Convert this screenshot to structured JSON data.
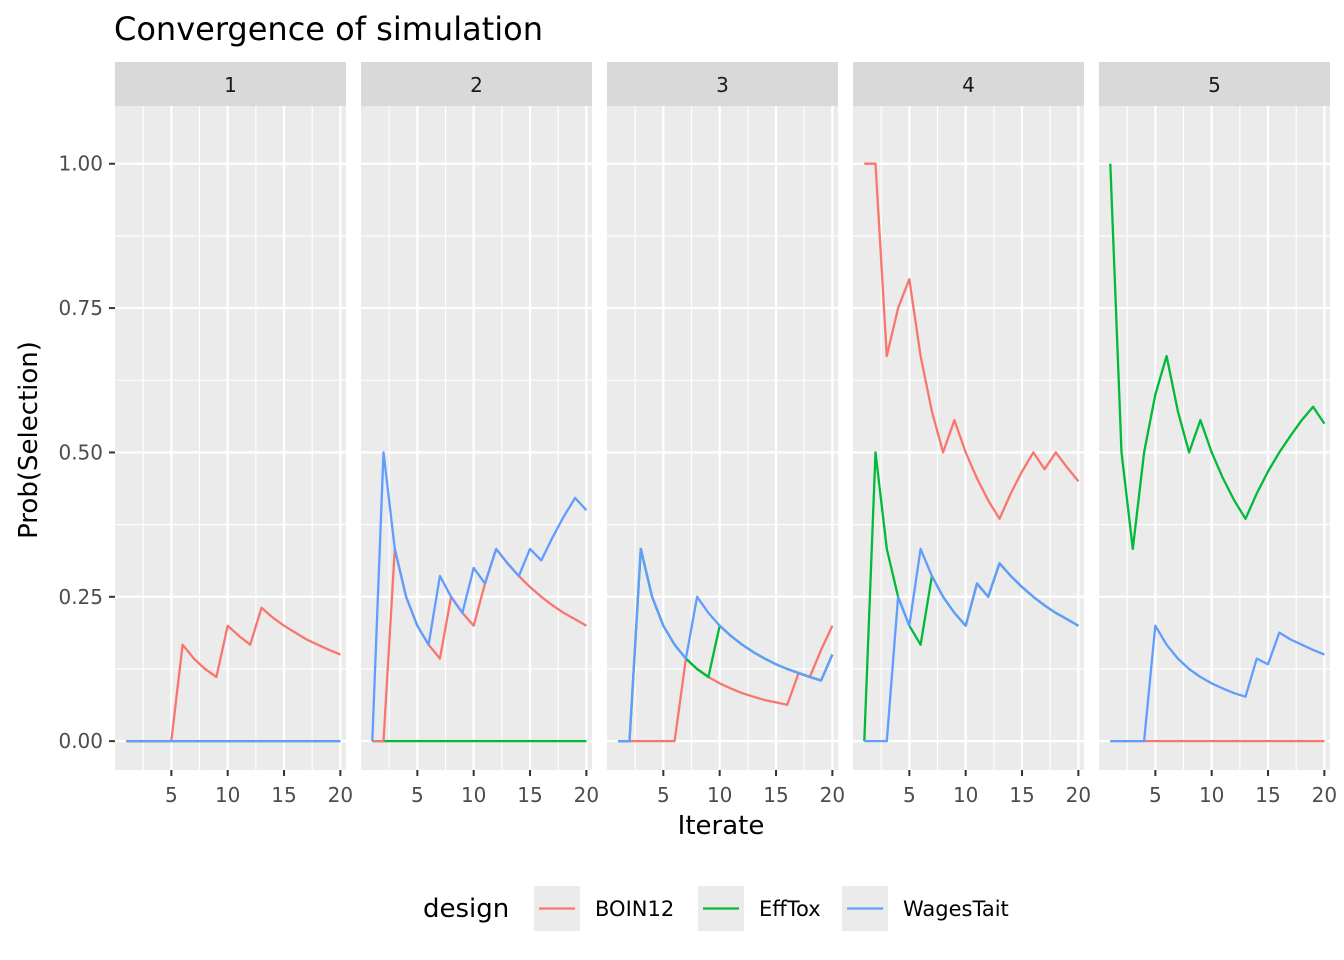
{
  "chart_data": {
    "type": "line",
    "title": "Convergence of simulation",
    "xlabel": "Iterate",
    "ylabel": "Prob(Selection)",
    "xlim": [
      0,
      20.5
    ],
    "ylim": [
      -0.05,
      1.1
    ],
    "xticks": [
      5,
      10,
      15,
      20
    ],
    "xtick_labels": [
      "5",
      "10",
      "15",
      "20"
    ],
    "yticks": [
      0,
      0.25,
      0.5,
      0.75,
      1.0
    ],
    "ytick_labels": [
      "0.00",
      "0.25",
      "0.50",
      "0.75",
      "1.00"
    ],
    "grid": true,
    "legend": {
      "title": "design",
      "position": "bottom",
      "entries": [
        {
          "name": "BOIN12",
          "color": "#F8766D"
        },
        {
          "name": "EffTox",
          "color": "#00BA38"
        },
        {
          "name": "WagesTait",
          "color": "#619CFF"
        }
      ]
    },
    "panels": [
      {
        "label": "1",
        "series": [
          {
            "name": "EffTox",
            "color": "#00BA38",
            "x": [
              1,
              2,
              3,
              4,
              5,
              6,
              7,
              8,
              9,
              10,
              11,
              12,
              13,
              14,
              15,
              16,
              17,
              18,
              19,
              20
            ],
            "values": [
              0,
              0,
              0,
              0,
              0,
              0,
              0,
              0,
              0,
              0,
              0,
              0,
              0,
              0,
              0,
              0,
              0,
              0,
              0,
              0
            ]
          },
          {
            "name": "BOIN12",
            "color": "#F8766D",
            "x": [
              1,
              2,
              3,
              4,
              5,
              6,
              7,
              8,
              9,
              10,
              11,
              12,
              13,
              14,
              15,
              16,
              17,
              18,
              19,
              20
            ],
            "values": [
              0,
              0,
              0,
              0,
              0,
              0.167,
              0.143,
              0.125,
              0.111,
              0.2,
              0.182,
              0.167,
              0.231,
              0.214,
              0.2,
              0.188,
              0.176,
              0.167,
              0.158,
              0.15
            ]
          },
          {
            "name": "WagesTait",
            "color": "#619CFF",
            "x": [
              1,
              2,
              3,
              4,
              5,
              6,
              7,
              8,
              9,
              10,
              11,
              12,
              13,
              14,
              15,
              16,
              17,
              18,
              19,
              20
            ],
            "values": [
              0,
              0,
              0,
              0,
              0,
              0,
              0,
              0,
              0,
              0,
              0,
              0,
              0,
              0,
              0,
              0,
              0,
              0,
              0,
              0
            ]
          }
        ]
      },
      {
        "label": "2",
        "series": [
          {
            "name": "EffTox",
            "color": "#00BA38",
            "x": [
              1,
              2,
              3,
              4,
              5,
              6,
              7,
              8,
              9,
              10,
              11,
              12,
              13,
              14,
              15,
              16,
              17,
              18,
              19,
              20
            ],
            "values": [
              0,
              0,
              0,
              0,
              0,
              0,
              0,
              0,
              0,
              0,
              0,
              0,
              0,
              0,
              0,
              0,
              0,
              0,
              0,
              0
            ]
          },
          {
            "name": "BOIN12",
            "color": "#F8766D",
            "x": [
              1,
              2,
              3,
              4,
              5,
              6,
              7,
              8,
              9,
              10,
              11,
              12,
              13,
              14,
              15,
              16,
              17,
              18,
              19,
              20
            ],
            "values": [
              0,
              0,
              0.333,
              0.25,
              0.2,
              0.167,
              0.143,
              0.25,
              0.222,
              0.2,
              0.273,
              0.333,
              0.308,
              0.286,
              0.267,
              0.25,
              0.235,
              0.222,
              0.211,
              0.2
            ]
          },
          {
            "name": "WagesTait",
            "color": "#619CFF",
            "x": [
              1,
              2,
              3,
              4,
              5,
              6,
              7,
              8,
              9,
              10,
              11,
              12,
              13,
              14,
              15,
              16,
              17,
              18,
              19,
              20
            ],
            "values": [
              0,
              0.5,
              0.333,
              0.25,
              0.2,
              0.167,
              0.286,
              0.25,
              0.222,
              0.3,
              0.273,
              0.333,
              0.308,
              0.286,
              0.333,
              0.313,
              0.353,
              0.389,
              0.421,
              0.4
            ]
          }
        ]
      },
      {
        "label": "3",
        "series": [
          {
            "name": "BOIN12",
            "color": "#F8766D",
            "x": [
              1,
              2,
              3,
              4,
              5,
              6,
              7,
              8,
              9,
              10,
              11,
              12,
              13,
              14,
              15,
              16,
              17,
              18,
              19,
              20
            ],
            "values": [
              0,
              0,
              0,
              0,
              0,
              0,
              0.143,
              0.125,
              0.111,
              0.1,
              0.091,
              0.083,
              0.077,
              0.071,
              0.067,
              0.063,
              0.118,
              0.111,
              0.158,
              0.2
            ]
          },
          {
            "name": "EffTox",
            "color": "#00BA38",
            "x": [
              1,
              2,
              3,
              4,
              5,
              6,
              7,
              8,
              9,
              10,
              11,
              12,
              13,
              14,
              15,
              16,
              17,
              18,
              19,
              20
            ],
            "values": [
              0,
              0,
              0.333,
              0.25,
              0.2,
              0.167,
              0.143,
              0.125,
              0.111,
              0.2,
              0.182,
              0.167,
              0.154,
              0.143,
              0.133,
              0.125,
              0.118,
              0.111,
              0.105,
              0.15
            ]
          },
          {
            "name": "WagesTait",
            "color": "#619CFF",
            "x": [
              1,
              2,
              3,
              4,
              5,
              6,
              7,
              8,
              9,
              10,
              11,
              12,
              13,
              14,
              15,
              16,
              17,
              18,
              19,
              20
            ],
            "values": [
              0,
              0,
              0.333,
              0.25,
              0.2,
              0.167,
              0.143,
              0.25,
              0.222,
              0.2,
              0.182,
              0.167,
              0.154,
              0.143,
              0.133,
              0.125,
              0.118,
              0.111,
              0.105,
              0.15
            ]
          }
        ]
      },
      {
        "label": "4",
        "series": [
          {
            "name": "BOIN12",
            "color": "#F8766D",
            "x": [
              1,
              2,
              3,
              4,
              5,
              6,
              7,
              8,
              9,
              10,
              11,
              12,
              13,
              14,
              15,
              16,
              17,
              18,
              19,
              20
            ],
            "values": [
              1,
              1,
              0.667,
              0.75,
              0.8,
              0.667,
              0.571,
              0.5,
              0.556,
              0.5,
              0.455,
              0.417,
              0.385,
              0.429,
              0.467,
              0.5,
              0.471,
              0.5,
              0.474,
              0.45
            ]
          },
          {
            "name": "EffTox",
            "color": "#00BA38",
            "x": [
              1,
              2,
              3,
              4,
              5,
              6,
              7,
              8,
              9,
              10,
              11,
              12,
              13,
              14,
              15,
              16,
              17,
              18,
              19,
              20
            ],
            "values": [
              0,
              0.5,
              0.333,
              0.25,
              0.2,
              0.167,
              0.286,
              0.25,
              0.222,
              0.2,
              0.273,
              0.25,
              0.308,
              0.286,
              0.267,
              0.25,
              0.235,
              0.222,
              0.211,
              0.2
            ]
          },
          {
            "name": "WagesTait",
            "color": "#619CFF",
            "x": [
              1,
              2,
              3,
              4,
              5,
              6,
              7,
              8,
              9,
              10,
              11,
              12,
              13,
              14,
              15,
              16,
              17,
              18,
              19,
              20
            ],
            "values": [
              0,
              0,
              0,
              0.25,
              0.2,
              0.333,
              0.286,
              0.25,
              0.222,
              0.2,
              0.273,
              0.25,
              0.308,
              0.286,
              0.267,
              0.25,
              0.235,
              0.222,
              0.211,
              0.2
            ]
          }
        ]
      },
      {
        "label": "5",
        "series": [
          {
            "name": "BOIN12",
            "color": "#F8766D",
            "x": [
              1,
              2,
              3,
              4,
              5,
              6,
              7,
              8,
              9,
              10,
              11,
              12,
              13,
              14,
              15,
              16,
              17,
              18,
              19,
              20
            ],
            "values": [
              0,
              0,
              0,
              0,
              0,
              0,
              0,
              0,
              0,
              0,
              0,
              0,
              0,
              0,
              0,
              0,
              0,
              0,
              0,
              0
            ]
          },
          {
            "name": "EffTox",
            "color": "#00BA38",
            "x": [
              1,
              2,
              3,
              4,
              5,
              6,
              7,
              8,
              9,
              10,
              11,
              12,
              13,
              14,
              15,
              16,
              17,
              18,
              19,
              20
            ],
            "values": [
              1,
              0.5,
              0.333,
              0.5,
              0.6,
              0.667,
              0.571,
              0.5,
              0.556,
              0.5,
              0.455,
              0.417,
              0.385,
              0.429,
              0.467,
              0.5,
              0.529,
              0.556,
              0.579,
              0.55
            ]
          },
          {
            "name": "WagesTait",
            "color": "#619CFF",
            "x": [
              1,
              2,
              3,
              4,
              5,
              6,
              7,
              8,
              9,
              10,
              11,
              12,
              13,
              14,
              15,
              16,
              17,
              18,
              19,
              20
            ],
            "values": [
              0,
              0,
              0,
              0,
              0.2,
              0.167,
              0.143,
              0.125,
              0.111,
              0.1,
              0.091,
              0.083,
              0.077,
              0.143,
              0.133,
              0.188,
              0.176,
              0.167,
              0.158,
              0.15
            ]
          }
        ]
      }
    ]
  }
}
